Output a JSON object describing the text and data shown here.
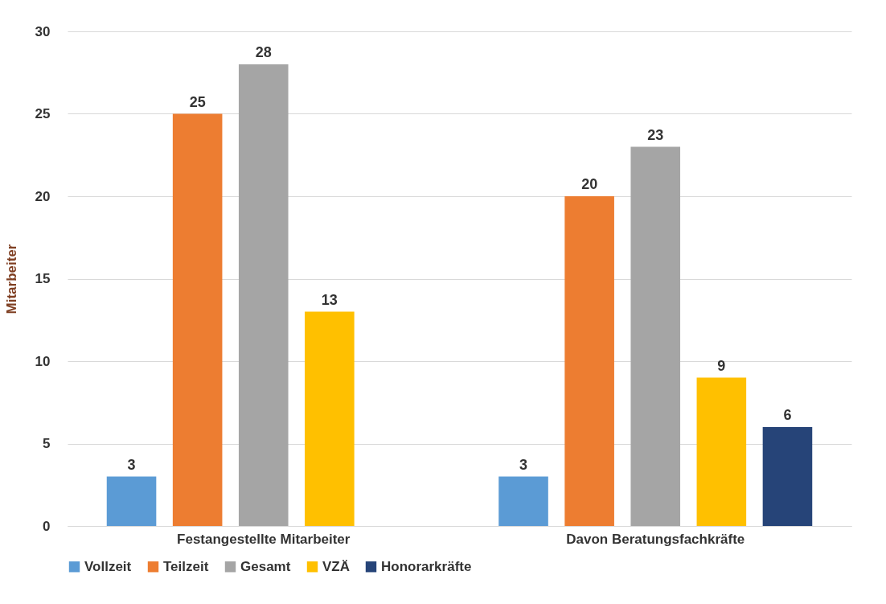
{
  "chart_data": {
    "type": "bar",
    "ylabel": "Mitarbeiter",
    "categories": [
      "Festangestellte Mitarbeiter",
      "Davon Beratungsfachkräfte"
    ],
    "series": [
      {
        "name": "Vollzeit",
        "color": "#5b9bd5",
        "values": [
          3,
          3
        ]
      },
      {
        "name": "Teilzeit",
        "color": "#ed7d31",
        "values": [
          25,
          20
        ]
      },
      {
        "name": "Gesamt",
        "color": "#a5a5a5",
        "values": [
          28,
          23
        ]
      },
      {
        "name": "VZÄ",
        "color": "#ffc000",
        "values": [
          13,
          9
        ]
      },
      {
        "name": "Honorarkräfte",
        "color": "#264478",
        "values": [
          null,
          6
        ]
      }
    ],
    "ylim": [
      0,
      30
    ],
    "yticks": [
      0,
      5,
      10,
      15,
      20,
      25,
      30
    ],
    "grid": "y",
    "legend": "bottom",
    "data_labels": true
  }
}
